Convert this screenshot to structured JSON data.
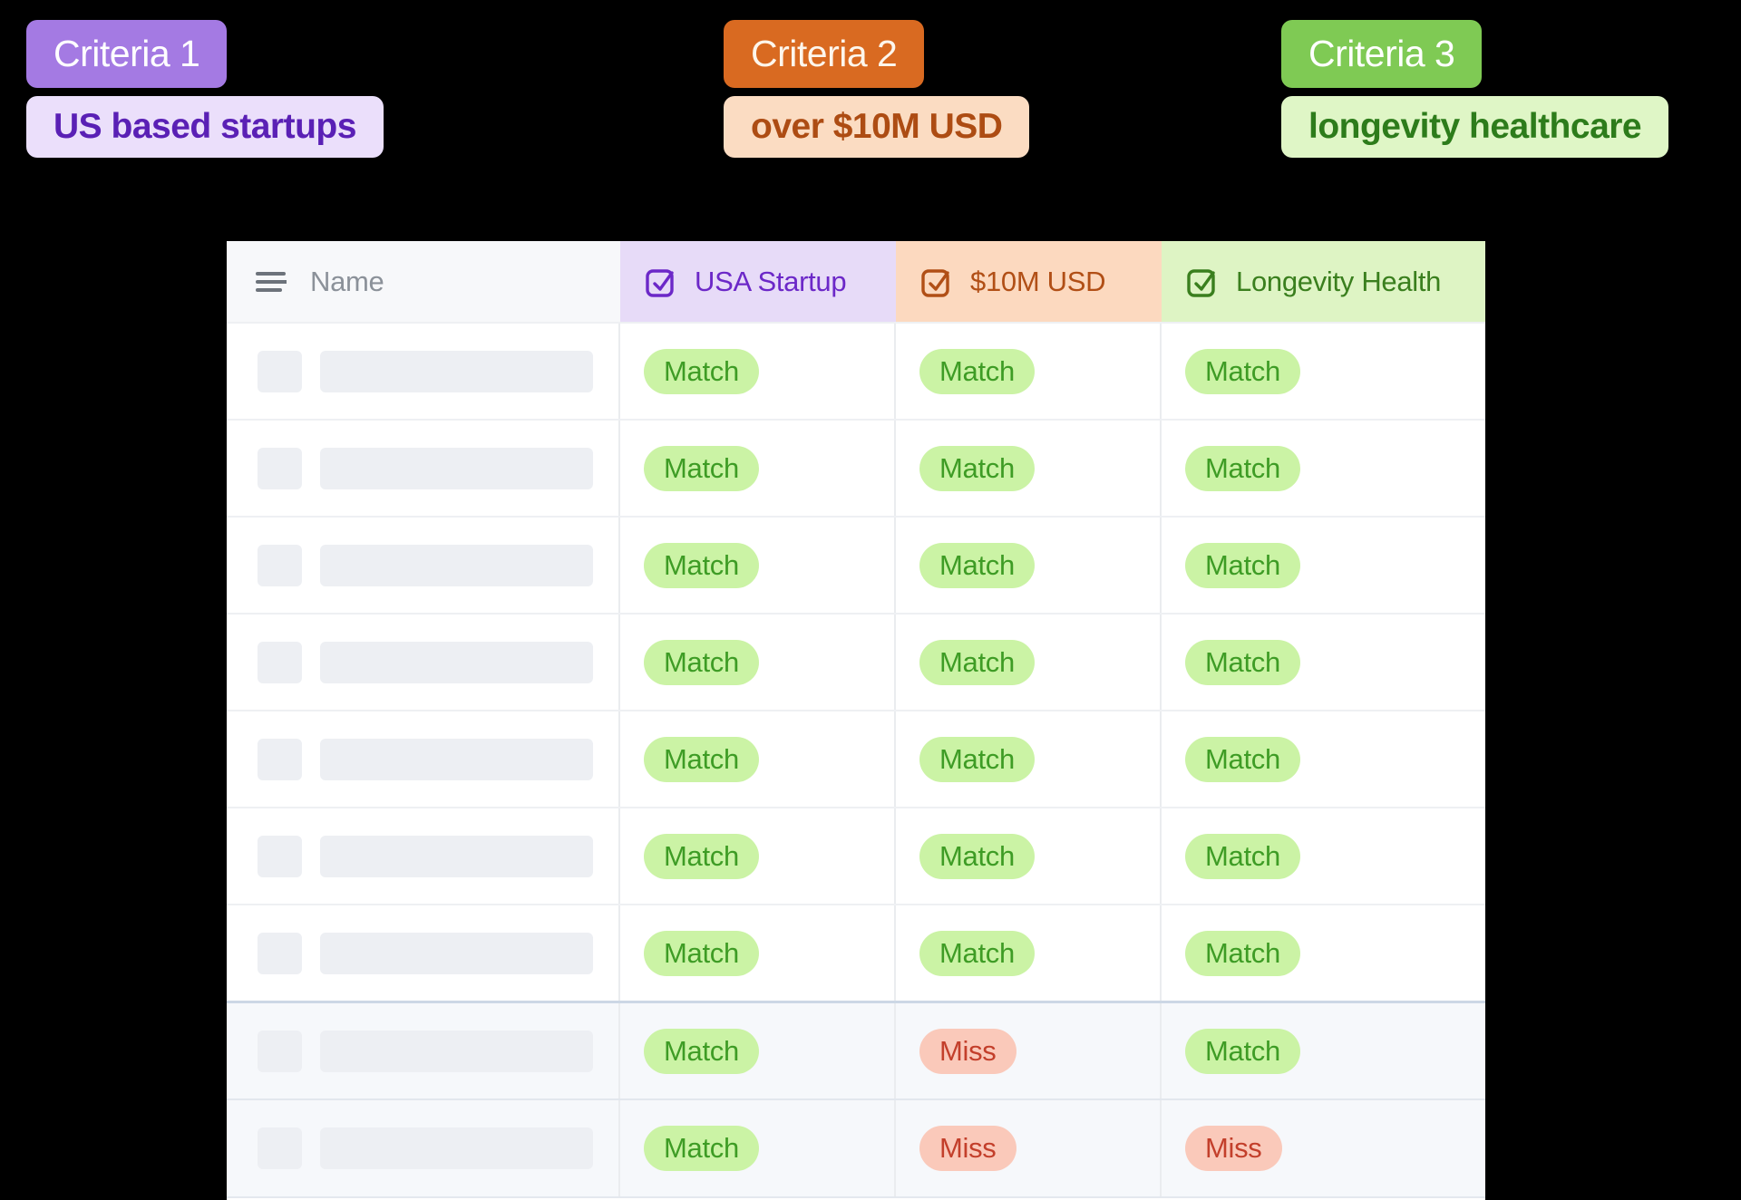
{
  "colors": {
    "page-bg": "#000000",
    "purple": "#a47ae3",
    "purple-light": "#ebdffb",
    "purple-dark": "#5a20b5",
    "orange": "#d96a21",
    "orange-light": "#fbdcc2",
    "orange-dark": "#ad4c13",
    "green": "#7fca54",
    "green-light": "#dff6c6",
    "green-dark": "#2d7c1b",
    "col1-bg": "#e7dbf8",
    "col1-text": "#6c28c8",
    "col2-bg": "#fcd9bf",
    "col2-text": "#b14f16",
    "col3-bg": "#def4c4",
    "col3-text": "#3a7f1e",
    "match-bg": "#cbf3a5",
    "match-text": "#3e9c25",
    "miss-bg": "#fac9ba",
    "miss-text": "#c33f2b"
  },
  "criteria": [
    {
      "label": "Criteria 1",
      "value": "US based startups"
    },
    {
      "label": "Criteria 2",
      "value": "over $10M USD"
    },
    {
      "label": "Criteria 3",
      "value": "longevity healthcare"
    }
  ],
  "table": {
    "name_header": "Name",
    "columns": [
      {
        "id": "usa-startup",
        "label": "USA Startup"
      },
      {
        "id": "10m-usd",
        "label": "$10M USD"
      },
      {
        "id": "longevity-health",
        "label": "Longevity Health"
      }
    ],
    "badge_labels": {
      "match": "Match",
      "miss": "Miss"
    },
    "rows": [
      {
        "results": [
          "match",
          "match",
          "match"
        ]
      },
      {
        "results": [
          "match",
          "match",
          "match"
        ]
      },
      {
        "results": [
          "match",
          "match",
          "match"
        ]
      },
      {
        "results": [
          "match",
          "match",
          "match"
        ]
      },
      {
        "results": [
          "match",
          "match",
          "match"
        ]
      },
      {
        "results": [
          "match",
          "match",
          "match"
        ]
      },
      {
        "results": [
          "match",
          "match",
          "match"
        ]
      },
      {
        "results": [
          "match",
          "miss",
          "match"
        ],
        "shaded": true,
        "divider": "strong"
      },
      {
        "results": [
          "match",
          "miss",
          "miss"
        ],
        "shaded": true,
        "divider": "soft"
      }
    ]
  }
}
